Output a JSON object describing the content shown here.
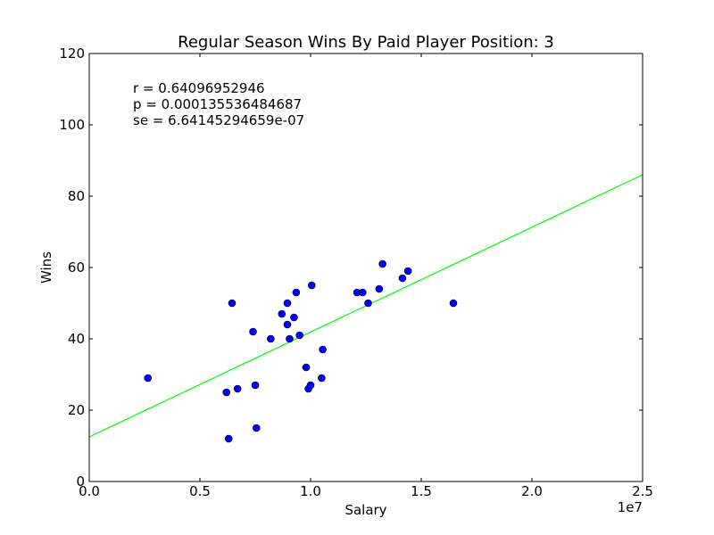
{
  "chart_data": {
    "type": "scatter",
    "title": "Regular Season Wins By Paid Player Position: 3",
    "xlabel": "Salary",
    "ylabel": "Wins",
    "x_multiplier_label": "1e7",
    "xlim": [
      0,
      25000000
    ],
    "ylim": [
      0,
      120
    ],
    "x_ticks": [
      0,
      5000000,
      10000000,
      15000000,
      20000000,
      25000000
    ],
    "x_tick_labels": [
      "0.0",
      "0.5",
      "1.0",
      "1.5",
      "2.0",
      "2.5"
    ],
    "y_ticks": [
      0,
      20,
      40,
      60,
      80,
      100,
      120
    ],
    "y_tick_labels": [
      "0",
      "20",
      "40",
      "60",
      "80",
      "100",
      "120"
    ],
    "annotations": [
      "r = 0.64096952946",
      "p = 0.000135536484687",
      "se = 6.64145294659e-07"
    ],
    "points": [
      {
        "x": 2650000,
        "y": 29
      },
      {
        "x": 6200000,
        "y": 25
      },
      {
        "x": 6300000,
        "y": 12
      },
      {
        "x": 6450000,
        "y": 50
      },
      {
        "x": 6700000,
        "y": 26
      },
      {
        "x": 7400000,
        "y": 42
      },
      {
        "x": 7500000,
        "y": 27
      },
      {
        "x": 7550000,
        "y": 15
      },
      {
        "x": 8200000,
        "y": 40
      },
      {
        "x": 8700000,
        "y": 47
      },
      {
        "x": 8950000,
        "y": 50
      },
      {
        "x": 8950000,
        "y": 44
      },
      {
        "x": 9050000,
        "y": 40
      },
      {
        "x": 9250000,
        "y": 46
      },
      {
        "x": 9350000,
        "y": 53
      },
      {
        "x": 9500000,
        "y": 41
      },
      {
        "x": 9800000,
        "y": 32
      },
      {
        "x": 9900000,
        "y": 26
      },
      {
        "x": 10000000,
        "y": 27
      },
      {
        "x": 10050000,
        "y": 55
      },
      {
        "x": 10500000,
        "y": 29
      },
      {
        "x": 10550000,
        "y": 37
      },
      {
        "x": 12100000,
        "y": 53
      },
      {
        "x": 12350000,
        "y": 53
      },
      {
        "x": 12600000,
        "y": 50
      },
      {
        "x": 13100000,
        "y": 54
      },
      {
        "x": 13250000,
        "y": 61
      },
      {
        "x": 14150000,
        "y": 57
      },
      {
        "x": 14400000,
        "y": 59
      },
      {
        "x": 16450000,
        "y": 50
      }
    ],
    "fit_line": {
      "x": [
        0,
        25000000
      ],
      "y": [
        12.5,
        86
      ],
      "color": "#00ff00"
    },
    "point_color": "#0000ff",
    "point_edge_color": "#000000",
    "grid": false
  }
}
